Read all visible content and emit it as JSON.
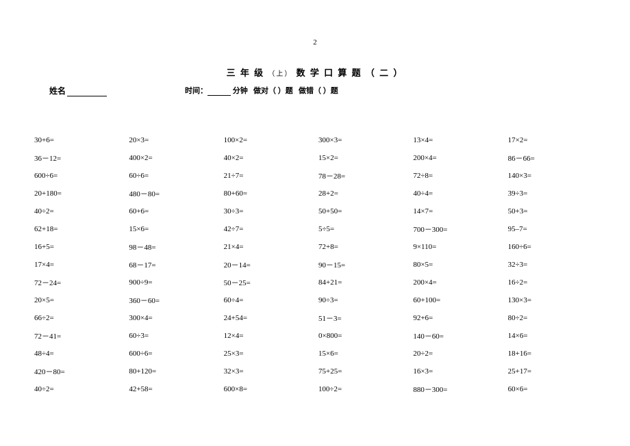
{
  "pageNumber": "2",
  "title": {
    "prefix": "三 年 级",
    "sub": "（上）",
    "main": "数 学 口 算 题",
    "suffix": "（ 二 ）"
  },
  "header": {
    "nameLabel": "姓名",
    "timeLabel": "时间：",
    "minutesLabel": "分钟",
    "correctLabel": "做对（  ）题",
    "wrongLabel": "做错（  ）题"
  },
  "problems": [
    [
      "30+6=",
      "20×3=",
      "100×2=",
      "300×3=",
      "13×4=",
      "17×2="
    ],
    [
      "36－12=",
      "400×2=",
      "40×2=",
      "15×2=",
      "200×4=",
      "86－66="
    ],
    [
      "600÷6=",
      "60÷6=",
      "21÷7=",
      "78－28=",
      "72÷8=",
      "140×3="
    ],
    [
      "20+180=",
      "480－80=",
      "80+60=",
      "28+2=",
      "40÷4=",
      "39÷3="
    ],
    [
      "40÷2=",
      "60+6=",
      "30÷3=",
      "50+50=",
      "14×7=",
      "50+3="
    ],
    [
      "62+18=",
      "15×6=",
      "42÷7=",
      "5÷5=",
      "700－300=",
      "95–7="
    ],
    [
      "16+5=",
      "98－48=",
      "21×4=",
      "72+8=",
      "9×110=",
      "160÷6="
    ],
    [
      "17×4=",
      "68－17=",
      "20－14=",
      "90－15=",
      "80×5=",
      "32÷3="
    ],
    [
      "72－24=",
      "900÷9=",
      "50－25=",
      "84+21=",
      "200×4=",
      "16÷2="
    ],
    [
      "20×5=",
      "360－60=",
      "60÷4=",
      "90÷3=",
      "60+100=",
      "130×3="
    ],
    [
      "66÷2=",
      "300×4=",
      "24+54=",
      "51－3=",
      "92+6=",
      "80÷2="
    ],
    [
      "72－41=",
      "60÷3=",
      "12×4=",
      "0×800=",
      "140－60=",
      "14×6="
    ],
    [
      "48÷4=",
      "600÷6=",
      "25×3=",
      "15×6=",
      "20÷2=",
      "18+16="
    ],
    [
      "420－80=",
      "80+120=",
      "32×3=",
      "75+25=",
      "16×3=",
      "25+17="
    ],
    [
      "40÷2=",
      "42+58=",
      "600×8=",
      "100÷2=",
      "880－300=",
      "60×6="
    ]
  ]
}
